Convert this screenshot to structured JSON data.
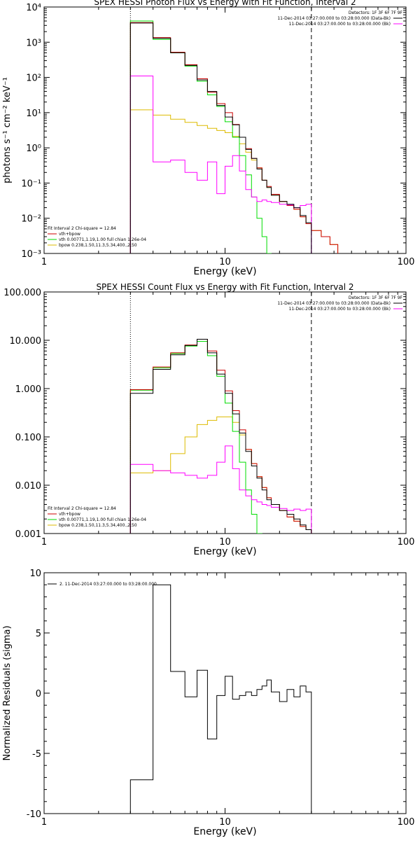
{
  "colors": {
    "data": "#000000",
    "bk": "#ff00ff",
    "fit": "#cc0000",
    "vth": "#00dd00",
    "bpow": "#ddbb00"
  },
  "panels": [
    {
      "id": "photon",
      "title": "SPEX HESSI Photon Flux vs Energy with Fit Function, Interval 2",
      "xlabel": "Energy (keV)",
      "ylabel": "photons s⁻¹ cm⁻² keV⁻¹",
      "xticks": [
        {
          "v": 1,
          "label": "1"
        },
        {
          "v": 10,
          "label": "10"
        },
        {
          "v": 100,
          "label": "100"
        }
      ],
      "yticks": [
        {
          "v": 0.001,
          "label": "10⁻³"
        },
        {
          "v": 0.01,
          "label": "10⁻²"
        },
        {
          "v": 0.1,
          "label": "10⁻¹"
        },
        {
          "v": 1,
          "label": "10⁰"
        },
        {
          "v": 10,
          "label": "10¹"
        },
        {
          "v": 100,
          "label": "10²"
        },
        {
          "v": 1000,
          "label": "10³"
        },
        {
          "v": 10000,
          "label": "10⁴"
        }
      ],
      "legend_top": [
        "Detectors: 1F 3F 6F 7F 9F",
        "11-Dec-2014 03:27:00.000 to 03:28:00.000 (Data-Bk)",
        "11-Dec-2014 03:27:00.000 to 03:28:00.000 (Bk)"
      ],
      "legend_bottom": [
        "Fit Interval 2   Chi-square = 12.84",
        "vth+bpow",
        "vth 0.00771,1.19,1.00  full chian 1.26e-04",
        "bpow 0.238,1.50,11.3,5.34,400.,2.50"
      ]
    },
    {
      "id": "count",
      "title": "SPEX HESSI Count Flux vs Energy with Fit Function, Interval 2",
      "xlabel": "Energy (keV)",
      "ylabel": "",
      "xticks": [
        {
          "v": 1,
          "label": "1"
        },
        {
          "v": 10,
          "label": "10"
        },
        {
          "v": 100,
          "label": "100"
        }
      ],
      "yticks": [
        {
          "v": 0.001,
          "label": "0.001"
        },
        {
          "v": 0.01,
          "label": "0.010"
        },
        {
          "v": 0.1,
          "label": "0.100"
        },
        {
          "v": 1,
          "label": "1.000"
        },
        {
          "v": 10,
          "label": "10.000"
        },
        {
          "v": 100,
          "label": "100.000"
        }
      ],
      "legend_top": [
        "Detectors: 1F 3F 6F 7F 9F",
        "11-Dec-2014 03:27:00.000 to 03:28:00.000 (Data-Bk)",
        "11-Dec-2014 03:27:00.000 to 03:28:00.000 (Bk)"
      ],
      "legend_bottom": [
        "Fit Interval 2   Chi-square = 12.84",
        "vth+bpow",
        "vth 0.00771,1.19,1.00  full chian 1.26e-04",
        "bpow 0.238,1.50,11.3,5.34,400.,2.50"
      ]
    },
    {
      "id": "resid",
      "title": "",
      "xlabel": "Energy (keV)",
      "ylabel": "Normalized Residuals (sigma)",
      "xticks": [
        {
          "v": 1,
          "label": "1"
        },
        {
          "v": 10,
          "label": "10"
        },
        {
          "v": 100,
          "label": "100"
        }
      ],
      "yticks": [
        {
          "v": -10,
          "label": "-10"
        },
        {
          "v": -5,
          "label": "-5"
        },
        {
          "v": 0,
          "label": "0"
        },
        {
          "v": 5,
          "label": "5"
        },
        {
          "v": 10,
          "label": "10"
        }
      ],
      "legend_top": [
        "2. 11-Dec-2014 03:27:00.000 to 03:28:00.000"
      ],
      "legend_bottom": []
    }
  ],
  "chart_data": [
    {
      "type": "line",
      "title": "SPEX HESSI Photon Flux vs Energy with Fit Function, Interval 2",
      "xlabel": "Energy (keV)",
      "ylabel": "photons s⁻¹ cm⁻² keV⁻¹",
      "xscale": "log",
      "yscale": "log",
      "xlim": [
        1,
        100
      ],
      "ylim": [
        0.001,
        10000
      ],
      "vlines": [
        {
          "x": 3,
          "style": "dotted"
        },
        {
          "x": 30,
          "style": "dashed"
        }
      ],
      "edges": [
        3,
        4,
        5,
        6,
        7,
        8,
        9,
        10,
        11,
        12,
        13,
        14,
        15,
        16,
        17,
        18,
        20,
        22,
        24,
        26,
        28,
        30,
        34,
        38,
        42
      ],
      "series": [
        {
          "name": "Data-Bk",
          "color": "data",
          "values": [
            3500,
            1300,
            500,
            220,
            85,
            40,
            16,
            7.5,
            4.5,
            2.0,
            0.9,
            0.5,
            0.25,
            0.12,
            0.075,
            0.045,
            0.03,
            0.025,
            0.02,
            0.012,
            0.0075
          ]
        },
        {
          "name": "Bk",
          "color": "bk",
          "values": [
            110,
            0.4,
            0.45,
            0.2,
            0.12,
            0.4,
            0.05,
            0.3,
            0.6,
            0.22,
            0.065,
            0.04,
            0.03,
            0.033,
            0.03,
            0.028,
            0.025,
            0.024,
            0.02,
            0.023,
            0.025
          ]
        },
        {
          "name": "vth+bpow",
          "color": "fit",
          "values": [
            3600,
            1350,
            520,
            230,
            92,
            38,
            18,
            10,
            4.6,
            2.0,
            0.95,
            0.5,
            0.27,
            0.12,
            0.08,
            0.048,
            0.03,
            0.023,
            0.018,
            0.011,
            0.007,
            0.0045,
            0.003,
            0.0018
          ]
        },
        {
          "name": "vth",
          "color": "vth",
          "values": [
            4000,
            1200,
            500,
            210,
            78,
            32,
            15,
            5.5,
            2.0,
            0.6,
            0.17,
            0.04,
            0.01,
            0.003,
            0.001
          ]
        },
        {
          "name": "bpow",
          "color": "bpow",
          "values": [
            12,
            8.5,
            6.5,
            5.3,
            4.3,
            3.6,
            3.1,
            2.7,
            2.1,
            1.3,
            0.75,
            0.45,
            0.27,
            0.12,
            0.075,
            0.045,
            0.03,
            0.023,
            0.018,
            0.011,
            0.007,
            0.0045,
            0.003,
            0.0018
          ]
        }
      ]
    },
    {
      "type": "line",
      "title": "SPEX HESSI Count Flux vs Energy with Fit Function, Interval 2",
      "xlabel": "Energy (keV)",
      "ylabel": "",
      "xscale": "log",
      "yscale": "log",
      "xlim": [
        1,
        100
      ],
      "ylim": [
        0.001,
        100
      ],
      "vlines": [
        {
          "x": 3,
          "style": "dotted"
        },
        {
          "x": 30,
          "style": "dashed"
        }
      ],
      "edges": [
        3,
        4,
        5,
        6,
        7,
        8,
        9,
        10,
        11,
        12,
        13,
        14,
        15,
        16,
        17,
        18,
        20,
        22,
        24,
        26,
        28,
        30
      ],
      "series": [
        {
          "name": "Data-Bk",
          "color": "data",
          "values": [
            0.8,
            2.5,
            5.0,
            7.8,
            10.5,
            5.5,
            2.0,
            0.8,
            0.3,
            0.12,
            0.05,
            0.025,
            0.014,
            0.008,
            0.005,
            0.004,
            0.003,
            0.0025,
            0.002,
            0.0015,
            0.0012
          ]
        },
        {
          "name": "Bk",
          "color": "bk",
          "values": [
            0.027,
            0.02,
            0.018,
            0.016,
            0.014,
            0.016,
            0.03,
            0.065,
            0.022,
            0.008,
            0.006,
            0.005,
            0.0045,
            0.004,
            0.0038,
            0.0035,
            0.0033,
            0.003,
            0.0032,
            0.003,
            0.0032
          ]
        },
        {
          "name": "vth+bpow",
          "color": "fit",
          "values": [
            0.95,
            2.8,
            5.5,
            8.0,
            10.5,
            6.0,
            2.4,
            0.9,
            0.35,
            0.14,
            0.055,
            0.028,
            0.015,
            0.009,
            0.0055,
            0.004,
            0.003,
            0.0022,
            0.0018,
            0.0014,
            0.0012
          ]
        },
        {
          "name": "vth",
          "color": "vth",
          "values": [
            0.93,
            2.7,
            5.3,
            7.6,
            9.5,
            4.8,
            1.8,
            0.5,
            0.13,
            0.03,
            0.008,
            0.0025,
            0.001
          ]
        },
        {
          "name": "bpow",
          "color": "bpow",
          "values": [
            0.018,
            0.02,
            0.045,
            0.1,
            0.18,
            0.22,
            0.26,
            0.26,
            0.2,
            0.11,
            0.055,
            0.028,
            0.015,
            0.009,
            0.0055,
            0.004,
            0.003,
            0.0022,
            0.0018,
            0.0014,
            0.0012
          ]
        }
      ]
    },
    {
      "type": "line",
      "title": "",
      "xlabel": "Energy (keV)",
      "ylabel": "Normalized Residuals (sigma)",
      "xscale": "log",
      "yscale": "linear",
      "xlim": [
        1,
        100
      ],
      "ylim": [
        -10,
        10
      ],
      "edges": [
        3,
        4,
        5,
        6,
        7,
        8,
        9,
        10,
        11,
        12,
        13,
        14,
        15,
        16,
        17,
        18,
        20,
        22,
        24,
        26,
        28,
        30
      ],
      "series": [
        {
          "name": "2. 11-Dec-2014 03:27:00.000 to 03:28:00.000",
          "color": "data",
          "values": [
            -7.2,
            9.0,
            1.8,
            -0.3,
            1.9,
            -3.8,
            -0.2,
            1.4,
            -0.5,
            -0.2,
            0.1,
            -0.2,
            0.3,
            0.6,
            1.1,
            0.1,
            -0.7,
            0.3,
            -0.3,
            0.6,
            0.1
          ]
        }
      ]
    }
  ]
}
